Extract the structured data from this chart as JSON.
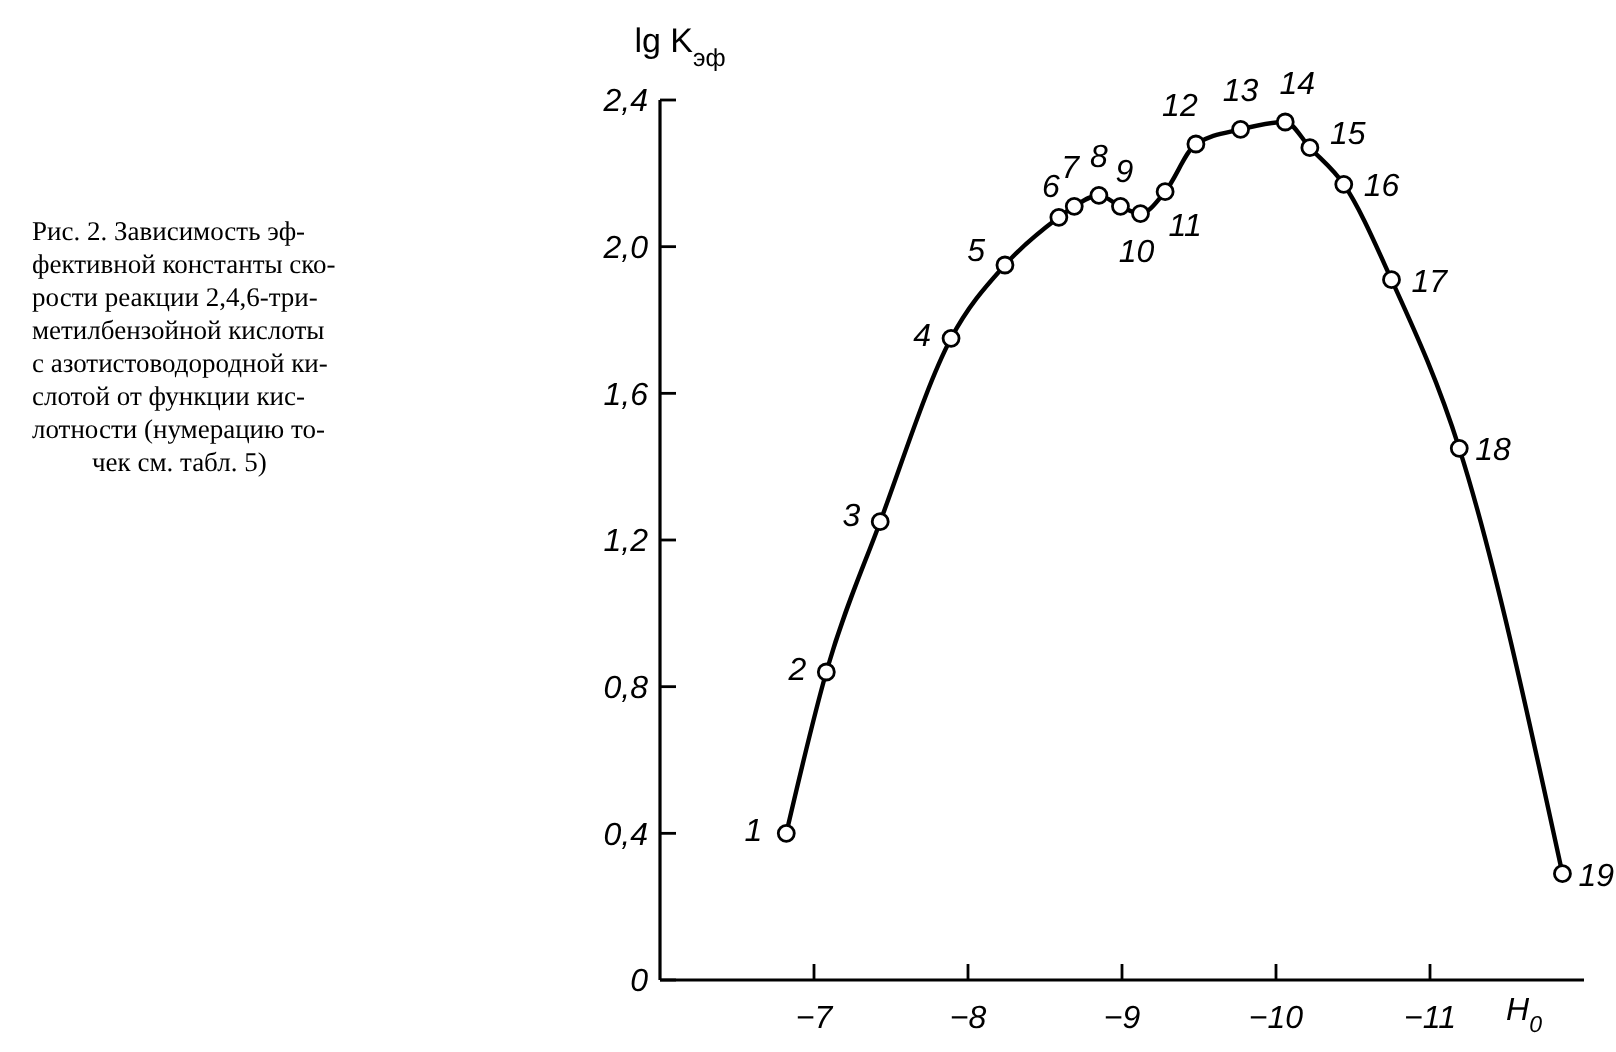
{
  "chart_data": {
    "type": "line",
    "xlabel": "H$_{0}$",
    "ylabel": "lg K$_{эф}$",
    "marker": "circle",
    "line_style": "solid",
    "grid": false,
    "x": [
      -6.82,
      -7.08,
      -7.43,
      -7.89,
      -8.24,
      -8.59,
      -8.69,
      -8.85,
      -8.99,
      -9.12,
      -9.28,
      -9.48,
      -9.77,
      -10.06,
      -10.22,
      -10.44,
      -10.75,
      -11.19,
      -11.86
    ],
    "series": [
      {
        "color": "#000000",
        "values": [
          0.4,
          0.84,
          1.25,
          1.75,
          1.95,
          2.08,
          2.11,
          2.14,
          2.11,
          2.09,
          2.15,
          2.28,
          2.32,
          2.34,
          2.27,
          2.17,
          1.91,
          1.45,
          0.29
        ]
      }
    ],
    "xlim": [
      -6,
      -12
    ],
    "ylim": [
      0,
      2.4
    ],
    "xticks": [
      {
        "value": -7,
        "label": "−7"
      },
      {
        "value": -8,
        "label": "−8"
      },
      {
        "value": -9,
        "label": "−9"
      },
      {
        "value": -10,
        "label": "−10"
      },
      {
        "value": -11,
        "label": "−11"
      }
    ],
    "yticks": [
      0,
      {
        "value": 0.4,
        "label": "0,4"
      },
      {
        "value": 0.8,
        "label": "0,8"
      },
      {
        "value": 1.2,
        "label": "1,2"
      },
      {
        "value": 1.6,
        "label": "1,6"
      },
      {
        "value": 2.0,
        "label": "2,0"
      },
      {
        "value": 2.4,
        "label": "2,4"
      }
    ],
    "annotations": [
      "Рис. 2. Зависимость эф-\nфективной константы ско-\nрости реакции 2,4,6-три-\nметилбензойной кислоты\nс азотистоводородной ки-\nслотой от функции кис-\nлотности (нумерацию то-\nчек см. табл. 5)",
      {
        "text": "1",
        "x": -6.82,
        "y": 0.4
      },
      {
        "text": "2",
        "x": -7.08,
        "y": 0.84
      },
      {
        "text": "3",
        "x": -7.43,
        "y": 1.25
      },
      {
        "text": "4",
        "x": -7.89,
        "y": 1.75
      },
      {
        "text": "5",
        "x": -8.24,
        "y": 1.95
      },
      {
        "text": "6",
        "x": -8.59,
        "y": 2.08
      },
      {
        "text": "7",
        "x": -8.69,
        "y": 2.11
      },
      {
        "text": "8",
        "x": -8.85,
        "y": 2.14
      },
      {
        "text": "9",
        "x": -8.99,
        "y": 2.11
      },
      {
        "text": "10",
        "x": -9.12,
        "y": 2.09
      },
      {
        "text": "11",
        "x": -9.28,
        "y": 2.15
      },
      {
        "text": "12",
        "x": -9.48,
        "y": 2.28
      },
      {
        "text": "13",
        "x": -9.77,
        "y": 2.32
      },
      {
        "text": "14",
        "x": -10.06,
        "y": 2.34
      },
      {
        "text": "15",
        "x": -10.22,
        "y": 2.27
      },
      {
        "text": "16",
        "x": -10.44,
        "y": 2.17
      },
      {
        "text": "17",
        "x": -10.75,
        "y": 1.91
      },
      {
        "text": "18",
        "x": -11.19,
        "y": 1.45
      },
      {
        "text": "19",
        "x": -11.86,
        "y": 0.29
      }
    ]
  }
}
